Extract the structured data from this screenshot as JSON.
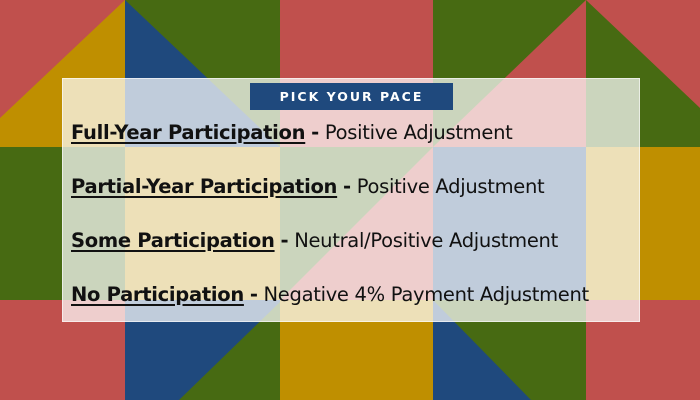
{
  "colors": {
    "red": "#c0504d",
    "gold": "#bf8f00",
    "blue": "#1f497d",
    "green": "#476a12",
    "panel": "#ffffff"
  },
  "title": "PICK YOUR PACE",
  "items": [
    {
      "label": "Full-Year Participation",
      "separator": "-",
      "result": "Positive Adjustment"
    },
    {
      "label": "Partial-Year Participation",
      "separator": "-",
      "result": "Positive Adjustment"
    },
    {
      "label": "Some Participation",
      "separator": "-",
      "result": "Neutral/Positive Adjustment"
    },
    {
      "label": "No Participation",
      "separator": "-",
      "result": "Negative 4% Payment Adjustment"
    }
  ]
}
